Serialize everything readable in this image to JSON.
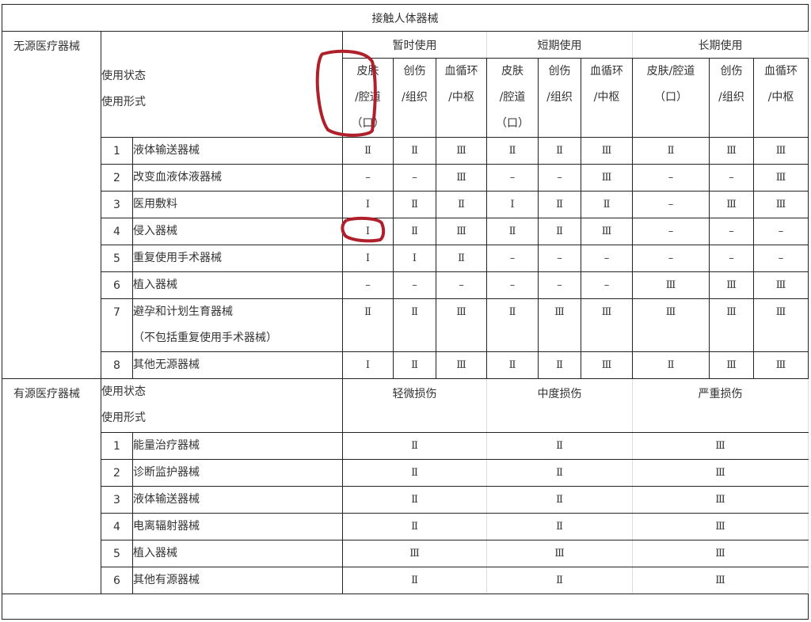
{
  "title": "接触人体器械",
  "passive": {
    "category": "无源医疗器械",
    "state_label": "使用状态",
    "form_label": "使用形式",
    "groups": [
      "暂时使用",
      "短期使用",
      "长期使用"
    ],
    "subheaders": [
      [
        "皮肤",
        "/腔道",
        "（口）"
      ],
      [
        "创伤",
        "/组织"
      ],
      [
        "血循环",
        "/中枢"
      ],
      [
        "皮肤",
        "/腔道",
        "（口）"
      ],
      [
        "创伤",
        "/组织"
      ],
      [
        "血循环",
        "/中枢"
      ],
      [
        "皮肤/腔道",
        "（口）"
      ],
      [
        "创伤",
        "/组织"
      ],
      [
        "血循环",
        "/中枢"
      ]
    ],
    "rows": [
      {
        "no": "1",
        "name": [
          "液体输送器械"
        ],
        "values": [
          "Ⅱ",
          "Ⅱ",
          "Ⅲ",
          "Ⅱ",
          "Ⅱ",
          "Ⅲ",
          "Ⅱ",
          "Ⅲ",
          "Ⅲ"
        ]
      },
      {
        "no": "2",
        "name": [
          "改变血液体液器械"
        ],
        "values": [
          "–",
          "–",
          "Ⅲ",
          "–",
          "–",
          "Ⅲ",
          "–",
          "–",
          "Ⅲ"
        ]
      },
      {
        "no": "3",
        "name": [
          "医用敷料"
        ],
        "values": [
          "Ⅰ",
          "Ⅱ",
          "Ⅱ",
          "Ⅰ",
          "Ⅱ",
          "Ⅱ",
          "–",
          "Ⅲ",
          "Ⅲ"
        ]
      },
      {
        "no": "4",
        "name": [
          "侵入器械"
        ],
        "values": [
          "Ⅰ",
          "Ⅱ",
          "Ⅲ",
          "Ⅱ",
          "Ⅱ",
          "Ⅲ",
          "–",
          "–",
          "–"
        ]
      },
      {
        "no": "5",
        "name": [
          "重复使用手术器械"
        ],
        "values": [
          "Ⅰ",
          "Ⅰ",
          "Ⅱ",
          "–",
          "–",
          "–",
          "–",
          "–",
          "–"
        ]
      },
      {
        "no": "6",
        "name": [
          "植入器械"
        ],
        "values": [
          "–",
          "–",
          "–",
          "–",
          "–",
          "–",
          "Ⅲ",
          "Ⅲ",
          "Ⅲ"
        ]
      },
      {
        "no": "7",
        "name": [
          "避孕和计划生育器械",
          "（不包括重复使用手术器械）"
        ],
        "values": [
          "Ⅱ",
          "Ⅱ",
          "Ⅲ",
          "Ⅱ",
          "Ⅲ",
          "Ⅲ",
          "Ⅲ",
          "Ⅲ",
          "Ⅲ"
        ]
      },
      {
        "no": "8",
        "name": [
          "其他无源器械"
        ],
        "values": [
          "Ⅰ",
          "Ⅱ",
          "Ⅲ",
          "Ⅱ",
          "Ⅱ",
          "Ⅲ",
          "Ⅱ",
          "Ⅲ",
          "Ⅲ"
        ]
      }
    ]
  },
  "active": {
    "category": "有源医疗器械",
    "state_label": "使用状态",
    "form_label": "使用形式",
    "groups": [
      "轻微损伤",
      "中度损伤",
      "严重损伤"
    ],
    "rows": [
      {
        "no": "1",
        "name": "能量治疗器械",
        "values": [
          "Ⅱ",
          "Ⅱ",
          "Ⅲ"
        ]
      },
      {
        "no": "2",
        "name": "诊断监护器械",
        "values": [
          "Ⅱ",
          "Ⅱ",
          "Ⅲ"
        ]
      },
      {
        "no": "3",
        "name": "液体输送器械",
        "values": [
          "Ⅱ",
          "Ⅱ",
          "Ⅲ"
        ]
      },
      {
        "no": "4",
        "name": "电离辐射器械",
        "values": [
          "Ⅱ",
          "Ⅱ",
          "Ⅲ"
        ]
      },
      {
        "no": "5",
        "name": "植入器械",
        "values": [
          "Ⅲ",
          "Ⅲ",
          "Ⅲ"
        ]
      },
      {
        "no": "6",
        "name": "其他有源器械",
        "values": [
          "Ⅱ",
          "Ⅱ",
          "Ⅲ"
        ]
      }
    ]
  },
  "annotation_color": "#b0202a"
}
